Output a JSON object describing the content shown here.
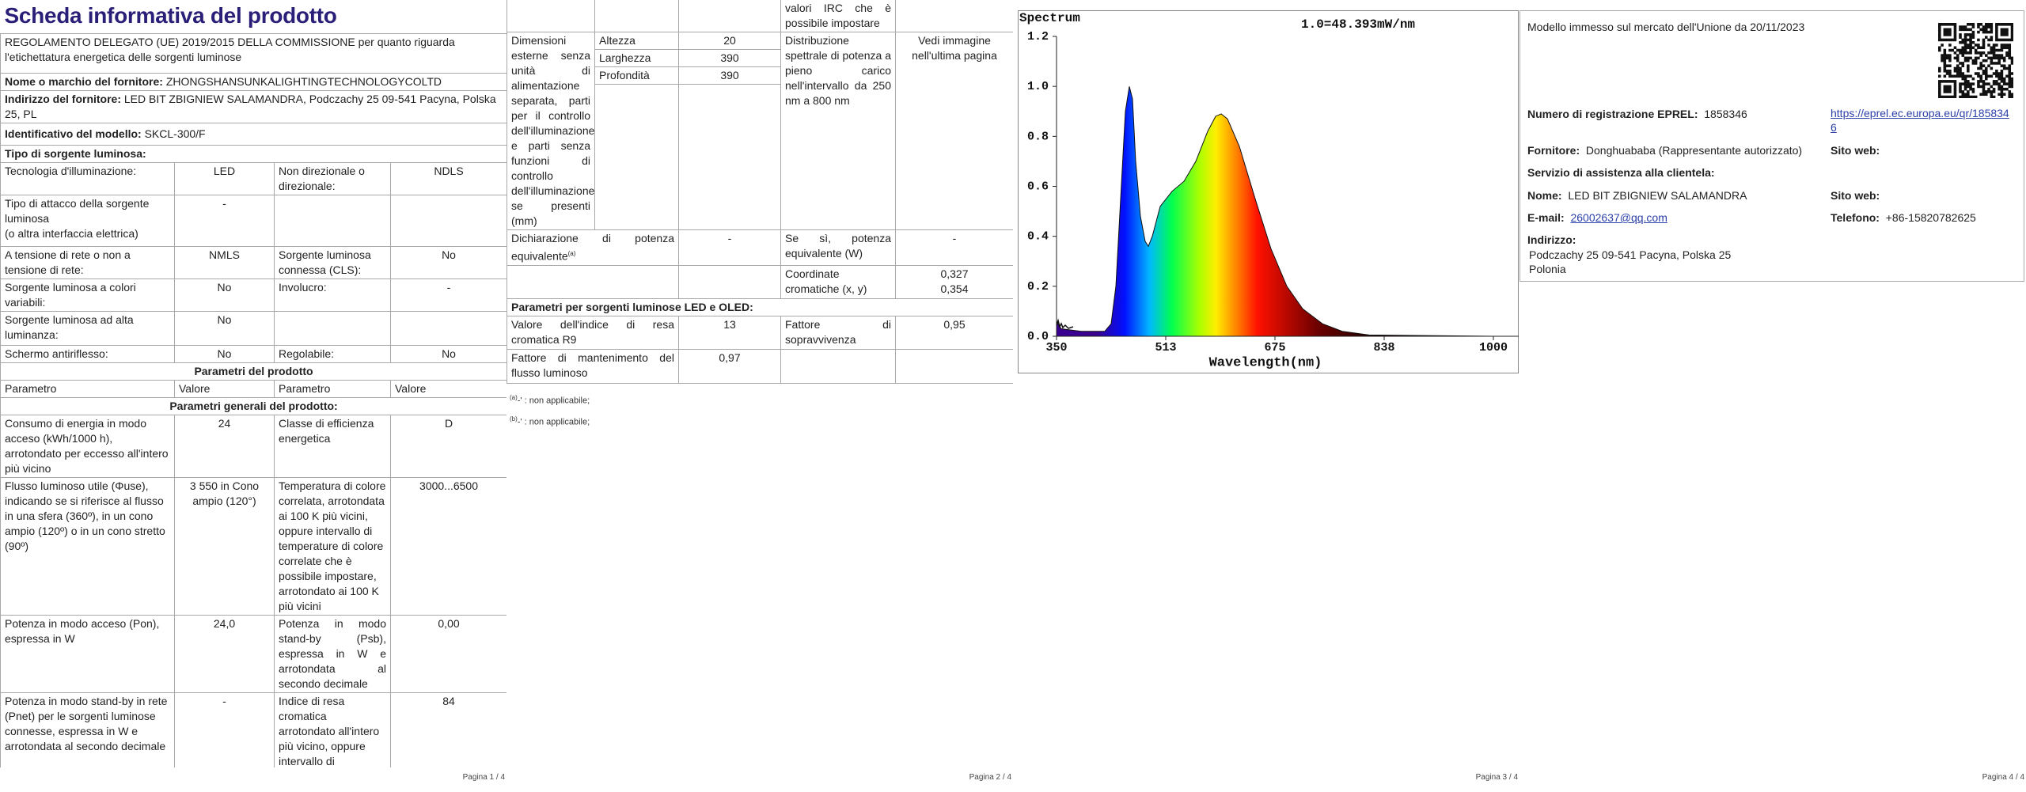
{
  "page1": {
    "title": "Scheda informativa del prodotto",
    "regulation": "REGOLAMENTO DELEGATO (UE) 2019/2015 DELLA COMMISSIONE per quanto riguarda l'etichettatura energetica delle sorgenti luminose",
    "supplier": {
      "label": "Nome o marchio del fornitore:",
      "value": "ZHONGSHANSUNKALIGHTINGTECHNOLOGYCOLTD"
    },
    "address": {
      "label": "Indirizzo del fornitore:",
      "value": "LED BIT ZBIGNIEW SALAMANDRA, Podczachy 25 09-541 Pacyna, Polska 25, PL"
    },
    "model": {
      "label": "Identificativo del modello:",
      "value": "SKCL-300/F"
    },
    "source_type": "Tipo di sorgente luminosa:",
    "tech_rows": [
      {
        "p1": "Tecnologia d'illuminazione:",
        "v1": "LED",
        "p2": "Non direzionale o direzionale:",
        "v2": "NDLS"
      },
      {
        "p1": "Tipo di attacco della sorgente luminosa",
        "p1b": "(o altra interfaccia elettrica)",
        "v1": "-"
      },
      {
        "p1": "A tensione di rete o non a tensione di rete:",
        "v1": "NMLS",
        "p2": "Sorgente luminosa connessa (CLS):",
        "v2": "No"
      },
      {
        "p1": "Sorgente luminosa a colori variabili:",
        "v1": "No",
        "p2": "Involucro:",
        "v2": "-"
      },
      {
        "p1": "Sorgente luminosa ad alta luminanza:",
        "v1": "No"
      },
      {
        "p1": "Schermo antiriflesso:",
        "v1": "No",
        "p2": "Regolabile:",
        "v2": "No"
      }
    ],
    "product_params": "Parametri del prodotto",
    "headers": [
      "Parametro",
      "Valore",
      "Parametro",
      "Valore"
    ],
    "general_params": "Parametri generali del prodotto:",
    "params": [
      {
        "p1": "Consumo di energia in modo acceso (kWh/1000 h), arrotondato per eccesso all'intero più vicino",
        "v1": "24",
        "p2": "Classe di efficienza energetica",
        "v2": "D"
      },
      {
        "p1": "Flusso luminoso utile (Φuse), indicando se si riferisce al flusso in una sfera (360º), in un cono ampio (120º) o in un cono stretto (90º)",
        "v1": "3 550 in Cono ampio (120°)",
        "p2": "Temperatura di colore correlata, arrotondata ai 100 K più vicini, oppure intervallo di temperature di colore correlate che è possibile impostare, arrotondato ai 100 K più vicini",
        "v2": "3000...6500"
      },
      {
        "p1": "Potenza in modo acceso (Pon), espressa in W",
        "v1": "24,0",
        "p2": "Potenza in modo stand-by (Psb), espressa in W e arrotondata al secondo decimale",
        "v2": "0,00"
      },
      {
        "p1": "Potenza in modo stand-by in rete (Pnet) per le sorgenti luminose connesse, espressa in W e arrotondata al secondo decimale",
        "v1": "-",
        "p2": "Indice di resa cromatica arrotondato all'intero più vicino, oppure intervallo di",
        "v2": "84"
      }
    ],
    "footer": "Pagina 1 / 4"
  },
  "page2": {
    "top_note": "valori IRC che è possibile impostare",
    "dimensions": {
      "label": "Dimensioni esterne senza unità di alimentazione separata, parti per il controllo dell'illuminazione e parti senza funzioni di controllo dell'illuminazione, se presenti (mm)",
      "rows": [
        {
          "name": "Altezza",
          "value": "20"
        },
        {
          "name": "Larghezza",
          "value": "390"
        },
        {
          "name": "Profondità",
          "value": "390"
        }
      ]
    },
    "spectral": {
      "label": "Distribuzione spettrale di potenza a pieno carico nell'intervallo da 250 nm a 800 nm",
      "value": "Vedi immagine nell'ultima pagina"
    },
    "equivalent": {
      "label": "Dichiarazione di potenza equivalente",
      "note": "(a)",
      "value": "-",
      "label2": "Se sì, potenza equivalente (W)",
      "value2": "-"
    },
    "chroma": {
      "label": "Coordinate cromatiche (x, y)",
      "values": [
        "0,327",
        "0,354"
      ]
    },
    "led_title": "Parametri per sorgenti luminose LED e OLED:",
    "r9": {
      "label": "Valore dell'indice di resa cromatica R9",
      "value": "13",
      "label2": "Fattore di sopravvivenza",
      "value2": "0,95"
    },
    "maintenance": {
      "label": "Fattore di mantenimento del flusso luminoso",
      "value": "0,97"
    },
    "notes": [
      {
        "mark": "(a)",
        "text": "-' : non applicabile;"
      },
      {
        "mark": "(b)",
        "text": "-' : non applicabile;"
      }
    ],
    "footer": "Pagina 2 / 4"
  },
  "page3": {
    "spectrum": {
      "label": "Spectrum",
      "scale": "1.0=48.393mW/nm",
      "yticks": [
        "1.2",
        "1.0",
        "0.8",
        "0.6",
        "0.4",
        "0.2",
        "0.0"
      ],
      "xticks": [
        "350",
        "513",
        "675",
        "838",
        "1000"
      ],
      "xlabel": "Wavelength(nm)"
    },
    "footer": "Pagina 3 / 4"
  },
  "page4": {
    "market": "Modello immesso sul mercato dell'Unione da 20/11/2023",
    "eprel": {
      "label": "Numero di registrazione EPREL:",
      "value": "1858346",
      "link": "https://eprel.ec.europa.eu/qr/1858346"
    },
    "supplier": {
      "label": "Fornitore:",
      "value": "Donghuababa (Rappresentante autorizzato)"
    },
    "website1": "Sito web:",
    "service": "Servizio di assistenza alla clientela:",
    "name": {
      "label": "Nome:",
      "value": "LED BIT ZBIGNIEW SALAMANDRA"
    },
    "website2": "Sito web:",
    "email": {
      "label": "E-mail:",
      "value": "26002637@qq.com"
    },
    "phone": {
      "label": "Telefono:",
      "value": "+86-15820782625"
    },
    "address": {
      "label": "Indirizzo:",
      "lines": [
        "Podczachy 25 09-541 Pacyna, Polska 25",
        "Polonia"
      ]
    },
    "footer": "Pagina 4 / 4"
  }
}
